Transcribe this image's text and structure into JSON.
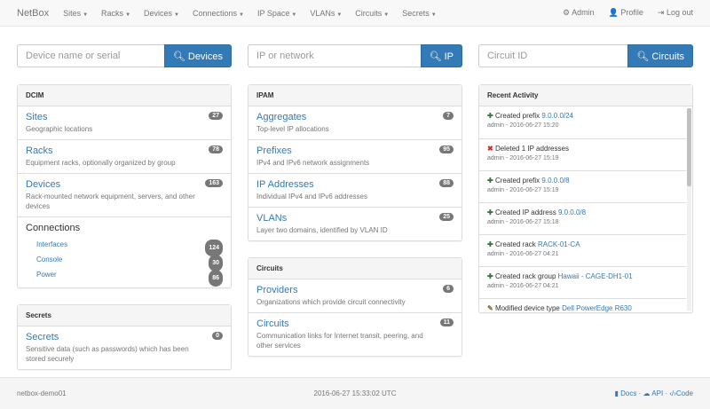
{
  "nav": {
    "brand": "NetBox",
    "menus": [
      "Sites",
      "Racks",
      "Devices",
      "Connections",
      "IP Space",
      "VLANs",
      "Circuits",
      "Secrets"
    ],
    "admin": "Admin",
    "profile": "Profile",
    "logout": "Log out"
  },
  "search": [
    {
      "placeholder": "Device name or serial",
      "button": "Devices"
    },
    {
      "placeholder": "IP or network",
      "button": "IP"
    },
    {
      "placeholder": "Circuit ID",
      "button": "Circuits"
    }
  ],
  "dcim": {
    "title": "DCIM",
    "items": [
      {
        "title": "Sites",
        "desc": "Geographic locations",
        "count": "27"
      },
      {
        "title": "Racks",
        "desc": "Equipment racks, optionally organized by group",
        "count": "78"
      },
      {
        "title": "Devices",
        "desc": "Rack-mounted network equipment, servers, and other devices",
        "count": "163"
      }
    ],
    "connections": {
      "title": "Connections",
      "items": [
        {
          "label": "Interfaces",
          "count": "124"
        },
        {
          "label": "Console",
          "count": "30"
        },
        {
          "label": "Power",
          "count": "86"
        }
      ]
    }
  },
  "secrets": {
    "title": "Secrets",
    "items": [
      {
        "title": "Secrets",
        "desc": "Sensitive data (such as passwords) which has been stored securely",
        "count": "0"
      }
    ]
  },
  "ipam": {
    "title": "IPAM",
    "items": [
      {
        "title": "Aggregates",
        "desc": "Top-level IP allocations",
        "count": "7"
      },
      {
        "title": "Prefixes",
        "desc": "IPv4 and IPv6 network assignments",
        "count": "95"
      },
      {
        "title": "IP Addresses",
        "desc": "Individual IPv4 and IPv6 addresses",
        "count": "88"
      },
      {
        "title": "VLANs",
        "desc": "Layer two domains, identified by VLAN ID",
        "count": "25"
      }
    ]
  },
  "circuits": {
    "title": "Circuits",
    "items": [
      {
        "title": "Providers",
        "desc": "Organizations which provide circuit connectivity",
        "count": "6"
      },
      {
        "title": "Circuits",
        "desc": "Communication links for Internet transit, peering, and other services",
        "count": "11"
      }
    ]
  },
  "activity": {
    "title": "Recent Activity",
    "items": [
      {
        "icon": "plus",
        "action": "Created prefix",
        "link": "9.0.0.0/24",
        "meta": "admin - 2016-06-27 15:20"
      },
      {
        "icon": "x",
        "action": "Deleted 1 IP addresses",
        "link": "",
        "meta": "admin - 2016-06-27 15:19"
      },
      {
        "icon": "plus",
        "action": "Created prefix",
        "link": "9.0.0.0/8",
        "meta": "admin - 2016-06-27 15:19"
      },
      {
        "icon": "plus",
        "action": "Created IP address",
        "link": "9.0.0.0/8",
        "meta": "admin - 2016-06-27 15:18"
      },
      {
        "icon": "plus",
        "action": "Created rack",
        "link": "RACK-01-CA",
        "meta": "admin - 2016-06-27 04:21"
      },
      {
        "icon": "plus",
        "action": "Created rack group",
        "link": "Hawaii - CAGE-DH1-01",
        "meta": "admin - 2016-06-27 04:21"
      },
      {
        "icon": "pencil",
        "action": "Modified device type",
        "link": "Dell PowerEdge R630",
        "meta": ""
      }
    ]
  },
  "footer": {
    "host": "netbox-demo01",
    "time": "2016-06-27 15:33:02 UTC",
    "docs": "Docs",
    "api": "API",
    "code": "Code",
    "sep": "·"
  },
  "colors": {
    "primary": "#337ab7",
    "plus": "#3c763d",
    "x": "#c9302c",
    "pencil": "#8a6d3b"
  }
}
